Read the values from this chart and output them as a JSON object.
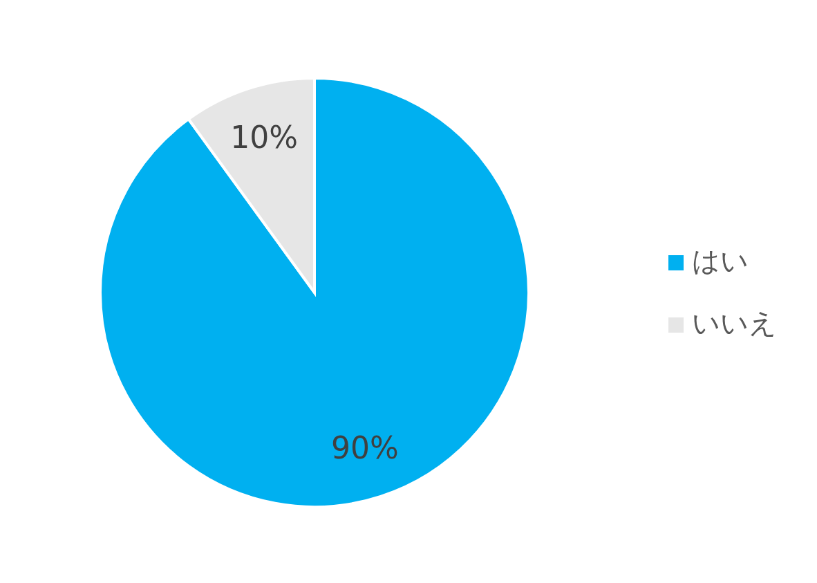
{
  "chart_data": {
    "type": "pie",
    "categories": [
      "はい",
      "いいえ"
    ],
    "values": [
      90,
      10
    ],
    "colors": [
      "#00b0f0",
      "#e6e6e6"
    ],
    "value_labels": [
      "90%",
      "10%"
    ],
    "legend": "right"
  }
}
